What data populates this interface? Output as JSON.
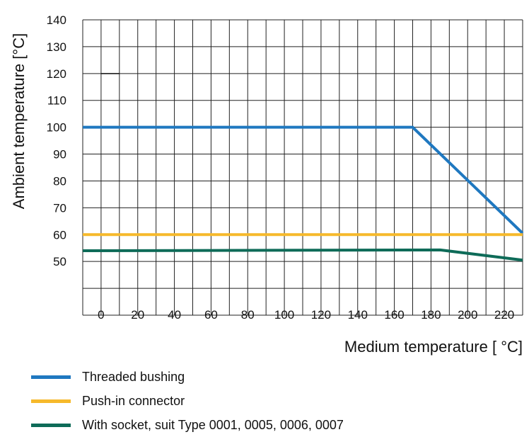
{
  "chart_data": {
    "type": "line",
    "xlabel": "Medium temperature [ °C]",
    "ylabel": "Ambient temperature [°C]",
    "xlim": [
      -10,
      230
    ],
    "ylim": [
      30,
      140
    ],
    "x_ticks": [
      0,
      20,
      40,
      60,
      80,
      100,
      120,
      140,
      160,
      180,
      200,
      220
    ],
    "y_ticks": [
      50,
      60,
      70,
      80,
      90,
      100,
      110,
      120,
      130,
      140
    ],
    "grid": true,
    "series": [
      {
        "name": "Threaded bushing",
        "color": "#1f78c0",
        "x": [
          -10,
          170,
          230
        ],
        "y": [
          100,
          100,
          60.5
        ]
      },
      {
        "name": "Push-in connector",
        "color": "#f6b92b",
        "x": [
          -10,
          230
        ],
        "y": [
          60,
          60
        ]
      },
      {
        "name": "With socket, suit Type 0001, 0005, 0006, 0007",
        "color": "#0e6b58",
        "x": [
          -10,
          185,
          230
        ],
        "y": [
          54,
          54.3,
          50.5
        ]
      }
    ],
    "annotations": [
      {
        "type": "dash",
        "x": [
          0,
          10
        ],
        "y": [
          120,
          120
        ],
        "color": "#111111"
      }
    ],
    "legend_position": "bottom-left"
  }
}
